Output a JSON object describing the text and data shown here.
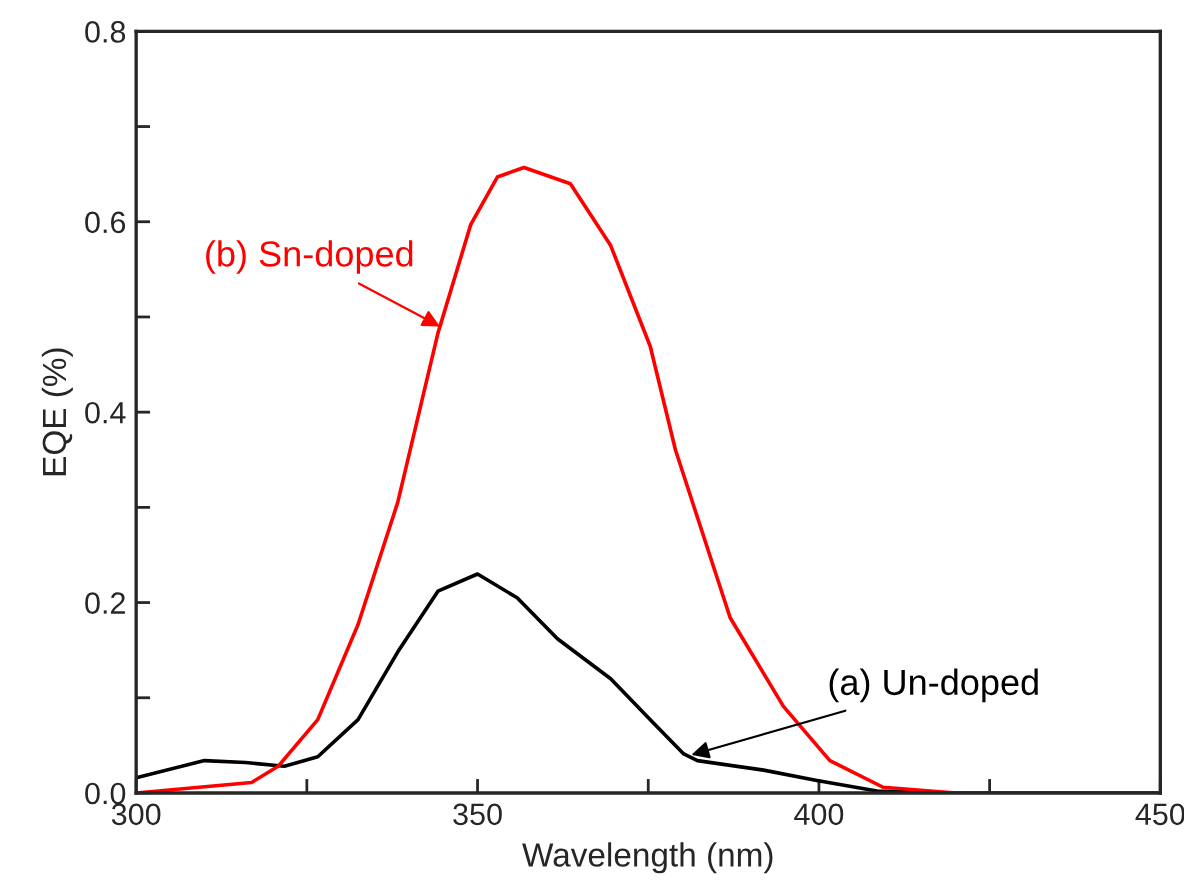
{
  "chart_data": {
    "type": "line",
    "xlabel": "Wavelength (nm)",
    "ylabel": "EQE (%)",
    "xlim": [
      300,
      450
    ],
    "ylim": [
      0,
      0.8
    ],
    "xticks": [
      300,
      {
        "value": 325,
        "label": null
      },
      350,
      {
        "value": 375,
        "label": null
      },
      400,
      {
        "value": 425,
        "label": null
      },
      450
    ],
    "yticks": [
      {
        "value": 0,
        "label": "0.0"
      },
      {
        "value": 0.1,
        "label": null
      },
      {
        "value": 0.2,
        "label": "0.2"
      },
      {
        "value": 0.3,
        "label": null
      },
      {
        "value": 0.4,
        "label": "0.4"
      },
      {
        "value": 0.5,
        "label": null
      },
      {
        "value": 0.6,
        "label": "0.6"
      },
      {
        "value": 0.7,
        "label": null
      },
      {
        "value": 0.8,
        "label": "0.8"
      }
    ],
    "grid": false,
    "legend": false,
    "marker": "none",
    "line_style": "solid",
    "series": [
      {
        "color": "#000000",
        "x": [
          300,
          310,
          316,
          321.7,
          326.6,
          332.5,
          338.3,
          344.2,
          350,
          355.8,
          361.7,
          369.5,
          375.3,
          380.2,
          382.2,
          391.9,
          399.7,
          408.5,
          420,
          450
        ],
        "values": [
          0.016,
          0.034,
          0.032,
          0.028,
          0.038,
          0.077,
          0.148,
          0.212,
          0.23,
          0.205,
          0.162,
          0.12,
          0.077,
          0.041,
          0.034,
          0.024,
          0.013,
          0.002,
          0,
          0
        ]
      },
      {
        "color": "#ff0000",
        "x": [
          300,
          316.9,
          320.8,
          326.6,
          332.5,
          338.3,
          344.2,
          349,
          352.9,
          356.8,
          363.6,
          369.5,
          375.3,
          379,
          387,
          394.8,
          401.6,
          409.4,
          420,
          450
        ],
        "values": [
          0,
          0.011,
          0.028,
          0.077,
          0.177,
          0.305,
          0.483,
          0.597,
          0.647,
          0.657,
          0.64,
          0.575,
          0.469,
          0.36,
          0.184,
          0.091,
          0.034,
          0.006,
          0,
          0
        ]
      }
    ],
    "annotations": [
      {
        "text": "(a) Un-doped",
        "x": 381.3,
        "y": 0.04
      },
      {
        "text": "(b) Sn-doped",
        "x": 344.5,
        "y": 0.49
      }
    ]
  }
}
